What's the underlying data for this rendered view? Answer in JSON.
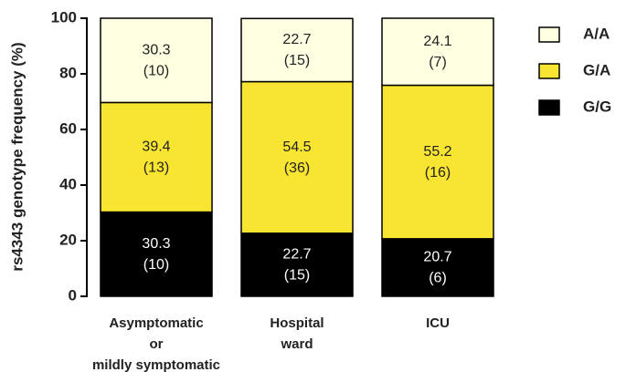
{
  "chart_data": {
    "type": "stacked_bar",
    "ylabel": "rs4343 genotype frequency (%)",
    "categories": [
      [
        "Asymptomatic",
        "or",
        "mildly symptomatic"
      ],
      [
        "Hospital",
        "ward"
      ],
      [
        "ICU"
      ]
    ],
    "series": [
      {
        "name": "G/G",
        "color": "#000000",
        "values": [
          30.3,
          22.7,
          20.7
        ],
        "count_labels": [
          "(10)",
          "(15)",
          "(6)"
        ]
      },
      {
        "name": "G/A",
        "color": "#f8e531",
        "values": [
          39.4,
          54.5,
          55.2
        ],
        "count_labels": [
          "(13)",
          "(36)",
          "(16)"
        ]
      },
      {
        "name": "A/A",
        "color": "#ffffe2",
        "values": [
          30.3,
          22.7,
          24.1
        ],
        "count_labels": [
          "(10)",
          "(15)",
          "(7)"
        ]
      }
    ],
    "ylim": [
      0,
      100
    ],
    "yticks": [
      0,
      20,
      40,
      60,
      80,
      100
    ]
  }
}
